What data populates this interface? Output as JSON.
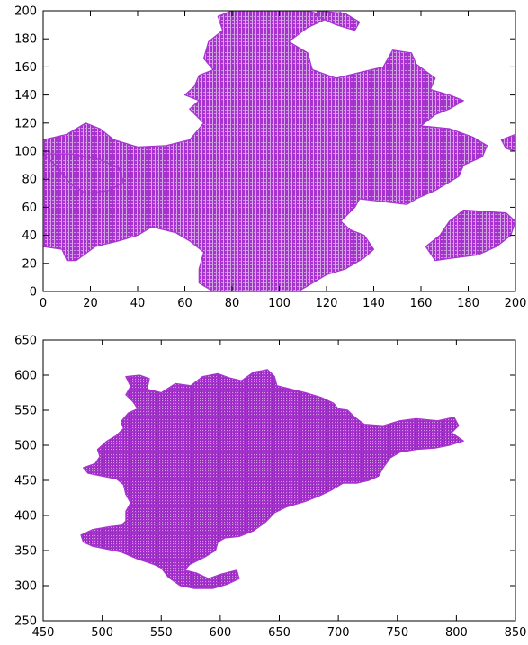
{
  "colors": {
    "blob": "#a733cf",
    "blob_dark": "#7a1fa0",
    "axes": "#000000",
    "background": "#ffffff"
  },
  "chart_data": [
    {
      "type": "scatter",
      "title": "",
      "xlabel": "",
      "ylabel": "",
      "xlim": [
        0,
        200
      ],
      "ylim": [
        0,
        200
      ],
      "xticks": [
        0,
        20,
        40,
        60,
        80,
        100,
        120,
        140,
        160,
        180,
        200
      ],
      "yticks": [
        0,
        20,
        40,
        60,
        80,
        100,
        120,
        140,
        160,
        180,
        200
      ],
      "xtick_labels": [
        "0",
        "20",
        "40",
        "60",
        "80",
        "100",
        "120",
        "140",
        "160",
        "180",
        "200"
      ],
      "ytick_labels": [
        "0",
        "20",
        "40",
        "60",
        "80",
        "100",
        "120",
        "140",
        "160",
        "180",
        "200"
      ],
      "grid": false,
      "legend": "none",
      "regions": [
        [
          [
            0,
            108
          ],
          [
            10,
            112
          ],
          [
            18,
            120
          ],
          [
            24,
            116
          ],
          [
            30,
            108
          ],
          [
            40,
            103
          ],
          [
            52,
            104
          ],
          [
            62,
            108
          ],
          [
            68,
            120
          ],
          [
            62,
            130
          ],
          [
            66,
            136
          ],
          [
            60,
            140
          ],
          [
            64,
            146
          ],
          [
            66,
            154
          ],
          [
            72,
            158
          ],
          [
            68,
            166
          ],
          [
            70,
            178
          ],
          [
            76,
            186
          ],
          [
            74,
            196
          ],
          [
            80,
            200
          ],
          [
            112,
            200
          ],
          [
            120,
            196
          ],
          [
            126,
            199
          ],
          [
            112,
            188
          ],
          [
            104,
            178
          ],
          [
            112,
            170
          ],
          [
            114,
            158
          ],
          [
            124,
            152
          ],
          [
            134,
            156
          ],
          [
            144,
            160
          ],
          [
            146,
            166
          ],
          [
            148,
            172
          ],
          [
            156,
            170
          ],
          [
            158,
            162
          ],
          [
            166,
            152
          ],
          [
            164,
            144
          ],
          [
            172,
            140
          ],
          [
            178,
            136
          ],
          [
            172,
            130
          ],
          [
            166,
            126
          ],
          [
            160,
            118
          ],
          [
            172,
            116
          ],
          [
            182,
            110
          ],
          [
            188,
            104
          ],
          [
            186,
            96
          ],
          [
            178,
            90
          ],
          [
            176,
            82
          ],
          [
            166,
            72
          ],
          [
            158,
            66
          ],
          [
            154,
            62
          ],
          [
            144,
            64
          ],
          [
            134,
            66
          ],
          [
            132,
            60
          ],
          [
            126,
            50
          ],
          [
            130,
            44
          ],
          [
            136,
            40
          ],
          [
            140,
            30
          ],
          [
            136,
            24
          ],
          [
            128,
            16
          ],
          [
            120,
            12
          ],
          [
            112,
            4
          ],
          [
            108,
            0
          ],
          [
            72,
            0
          ],
          [
            66,
            6
          ],
          [
            66,
            16
          ],
          [
            68,
            28
          ],
          [
            62,
            36
          ],
          [
            56,
            42
          ],
          [
            46,
            46
          ],
          [
            40,
            40
          ],
          [
            32,
            36
          ],
          [
            22,
            32
          ],
          [
            14,
            22
          ],
          [
            10,
            22
          ],
          [
            8,
            30
          ],
          [
            0,
            32
          ],
          [
            0,
            108
          ]
        ],
        [
          [
            0,
            98
          ],
          [
            4,
            92
          ],
          [
            8,
            84
          ],
          [
            12,
            76
          ],
          [
            18,
            70
          ],
          [
            28,
            72
          ],
          [
            34,
            78
          ],
          [
            32,
            88
          ],
          [
            24,
            94
          ],
          [
            12,
            98
          ],
          [
            0,
            98
          ]
        ],
        [
          [
            178,
            58
          ],
          [
            196,
            56
          ],
          [
            200,
            50
          ],
          [
            198,
            40
          ],
          [
            192,
            32
          ],
          [
            184,
            26
          ],
          [
            174,
            24
          ],
          [
            166,
            22
          ],
          [
            162,
            32
          ],
          [
            168,
            40
          ],
          [
            172,
            50
          ],
          [
            178,
            58
          ]
        ],
        [
          [
            194,
            108
          ],
          [
            200,
            112
          ],
          [
            200,
            100
          ],
          [
            196,
            102
          ],
          [
            194,
            108
          ]
        ],
        [
          [
            116,
            200
          ],
          [
            128,
            198
          ],
          [
            134,
            192
          ],
          [
            132,
            186
          ],
          [
            124,
            190
          ],
          [
            116,
            196
          ],
          [
            116,
            200
          ]
        ]
      ]
    },
    {
      "type": "scatter",
      "title": "",
      "xlabel": "",
      "ylabel": "",
      "xlim": [
        450,
        850
      ],
      "ylim": [
        250,
        650
      ],
      "xticks": [
        450,
        500,
        550,
        600,
        650,
        700,
        750,
        800,
        850
      ],
      "yticks": [
        250,
        300,
        350,
        400,
        450,
        500,
        550,
        600,
        650
      ],
      "xtick_labels": [
        "450",
        "500",
        "550",
        "600",
        "650",
        "700",
        "750",
        "800",
        "850"
      ],
      "ytick_labels": [
        "250",
        "300",
        "350",
        "400",
        "450",
        "500",
        "550",
        "600",
        "650"
      ],
      "grid": false,
      "legend": "none",
      "regions": [
        [
          [
            520,
            598
          ],
          [
            532,
            600
          ],
          [
            540,
            595
          ],
          [
            538,
            580
          ],
          [
            550,
            575
          ],
          [
            562,
            588
          ],
          [
            575,
            585
          ],
          [
            585,
            598
          ],
          [
            598,
            602
          ],
          [
            608,
            596
          ],
          [
            618,
            592
          ],
          [
            628,
            604
          ],
          [
            640,
            608
          ],
          [
            646,
            598
          ],
          [
            648,
            585
          ],
          [
            660,
            580
          ],
          [
            672,
            575
          ],
          [
            686,
            568
          ],
          [
            696,
            560
          ],
          [
            700,
            552
          ],
          [
            708,
            550
          ],
          [
            714,
            540
          ],
          [
            722,
            530
          ],
          [
            738,
            528
          ],
          [
            752,
            535
          ],
          [
            766,
            538
          ],
          [
            784,
            535
          ],
          [
            798,
            540
          ],
          [
            802,
            528
          ],
          [
            796,
            518
          ],
          [
            806,
            506
          ],
          [
            794,
            500
          ],
          [
            782,
            496
          ],
          [
            766,
            494
          ],
          [
            752,
            490
          ],
          [
            744,
            482
          ],
          [
            738,
            468
          ],
          [
            734,
            456
          ],
          [
            726,
            450
          ],
          [
            716,
            446
          ],
          [
            704,
            446
          ],
          [
            694,
            436
          ],
          [
            684,
            428
          ],
          [
            672,
            420
          ],
          [
            656,
            412
          ],
          [
            646,
            404
          ],
          [
            638,
            390
          ],
          [
            628,
            378
          ],
          [
            616,
            370
          ],
          [
            604,
            368
          ],
          [
            598,
            362
          ],
          [
            596,
            350
          ],
          [
            586,
            340
          ],
          [
            574,
            330
          ],
          [
            570,
            322
          ],
          [
            580,
            318
          ],
          [
            590,
            310
          ],
          [
            600,
            316
          ],
          [
            614,
            322
          ],
          [
            616,
            310
          ],
          [
            606,
            302
          ],
          [
            594,
            296
          ],
          [
            578,
            296
          ],
          [
            566,
            300
          ],
          [
            556,
            312
          ],
          [
            550,
            325
          ],
          [
            544,
            330
          ],
          [
            530,
            338
          ],
          [
            516,
            348
          ],
          [
            504,
            352
          ],
          [
            492,
            356
          ],
          [
            484,
            362
          ],
          [
            482,
            372
          ],
          [
            492,
            380
          ],
          [
            506,
            384
          ],
          [
            516,
            386
          ],
          [
            520,
            392
          ],
          [
            520,
            406
          ],
          [
            524,
            418
          ],
          [
            520,
            430
          ],
          [
            518,
            444
          ],
          [
            512,
            452
          ],
          [
            500,
            456
          ],
          [
            488,
            460
          ],
          [
            484,
            468
          ],
          [
            494,
            474
          ],
          [
            498,
            484
          ],
          [
            496,
            494
          ],
          [
            504,
            506
          ],
          [
            512,
            514
          ],
          [
            518,
            524
          ],
          [
            516,
            534
          ],
          [
            522,
            546
          ],
          [
            530,
            552
          ],
          [
            526,
            562
          ],
          [
            520,
            572
          ],
          [
            524,
            584
          ],
          [
            520,
            598
          ]
        ]
      ]
    }
  ]
}
